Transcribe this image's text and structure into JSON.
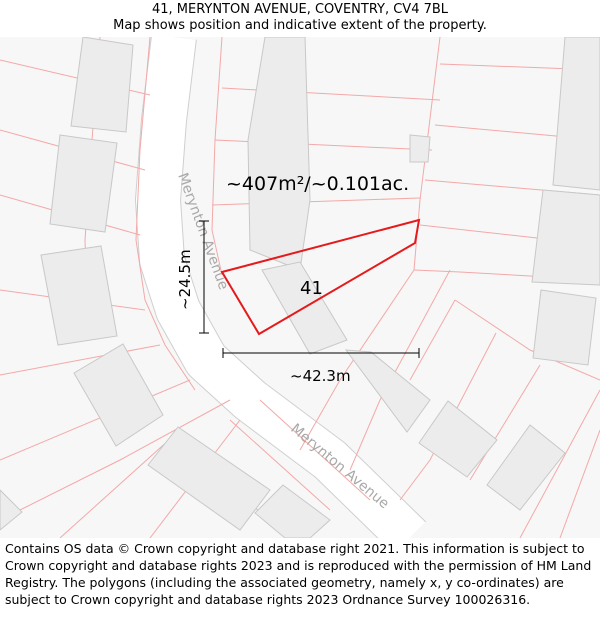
{
  "header": {
    "address": "41, MERYNTON AVENUE, COVENTRY, CV4 7BL",
    "subtitle": "Map shows position and indicative extent of the property."
  },
  "map": {
    "area_label": "~407m²/~0.101ac.",
    "plot_number": "41",
    "width_label": "~42.3m",
    "height_label": "~24.5m",
    "street_labels": [
      "Merynton Avenue",
      "Merynton Avenue"
    ],
    "colors": {
      "boundary": "#e41a1c",
      "parcel_lines": "#f4a8a8",
      "building_fill": "#ececec",
      "building_stroke": "#c8c8c8",
      "road": "#ffffff",
      "road_edge": "#cfcfcf",
      "background": "#f7f7f7"
    }
  },
  "footer": {
    "copyright": "Contains OS data © Crown copyright and database right 2021. This information is subject to Crown copyright and database rights 2023 and is reproduced with the permission of HM Land Registry. The polygons (including the associated geometry, namely x, y co-ordinates) are subject to Crown copyright and database rights 2023 Ordnance Survey 100026316."
  }
}
